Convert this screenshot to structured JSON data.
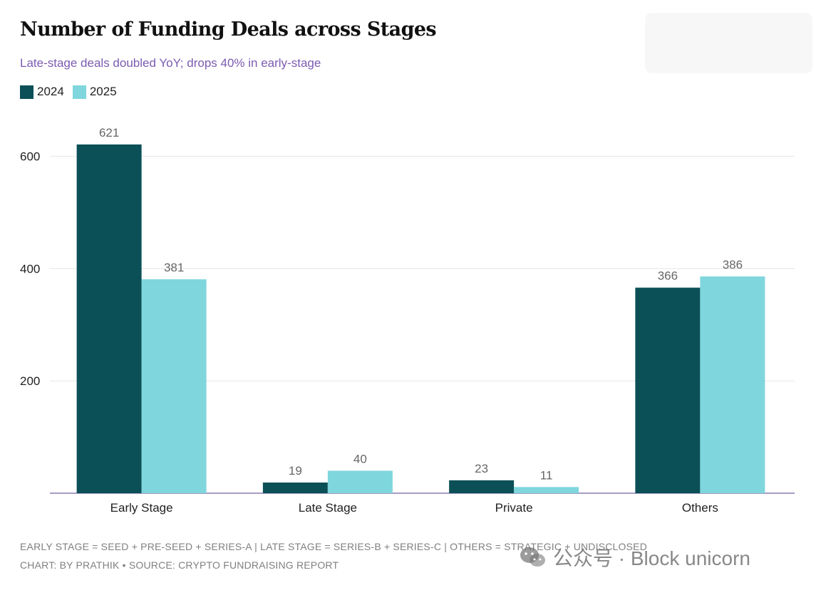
{
  "title": "Number of Funding Deals across Stages",
  "subtitle": "Late-stage deals doubled YoY; drops 40% in early-stage",
  "footer": {
    "line1": "EARLY STAGE = SEED + PRE-SEED + SERIES-A | LATE STAGE = SERIES-B + SERIES-C | OTHERS = STRATEGIC + UNDISCLOSED",
    "line2": "CHART: BY PRATHIK • SOURCE: CRYPTO FUNDRAISING REPORT"
  },
  "watermark": {
    "text": "公众号 · Block unicorn",
    "icon": "wechat-icon"
  },
  "colors": {
    "s2024": "#0b4f57",
    "s2025": "#7fd6dd",
    "grid": "#e6e6e6",
    "axis": "#8a7ab0",
    "subtitle": "#7b5bb0"
  },
  "chart_data": {
    "type": "bar",
    "title": "Number of Funding Deals across Stages",
    "subtitle": "Late-stage deals doubled YoY; drops 40% in early-stage",
    "categories": [
      "Early Stage",
      "Late Stage",
      "Private",
      "Others"
    ],
    "series": [
      {
        "name": "2024",
        "values": [
          621,
          19,
          23,
          366
        ]
      },
      {
        "name": "2025",
        "values": [
          381,
          40,
          11,
          386
        ]
      }
    ],
    "yticks": [
      200,
      400,
      600
    ],
    "ylim": [
      0,
      621
    ],
    "xlabel": "",
    "ylabel": "",
    "grid": true,
    "legend": "top-left"
  }
}
